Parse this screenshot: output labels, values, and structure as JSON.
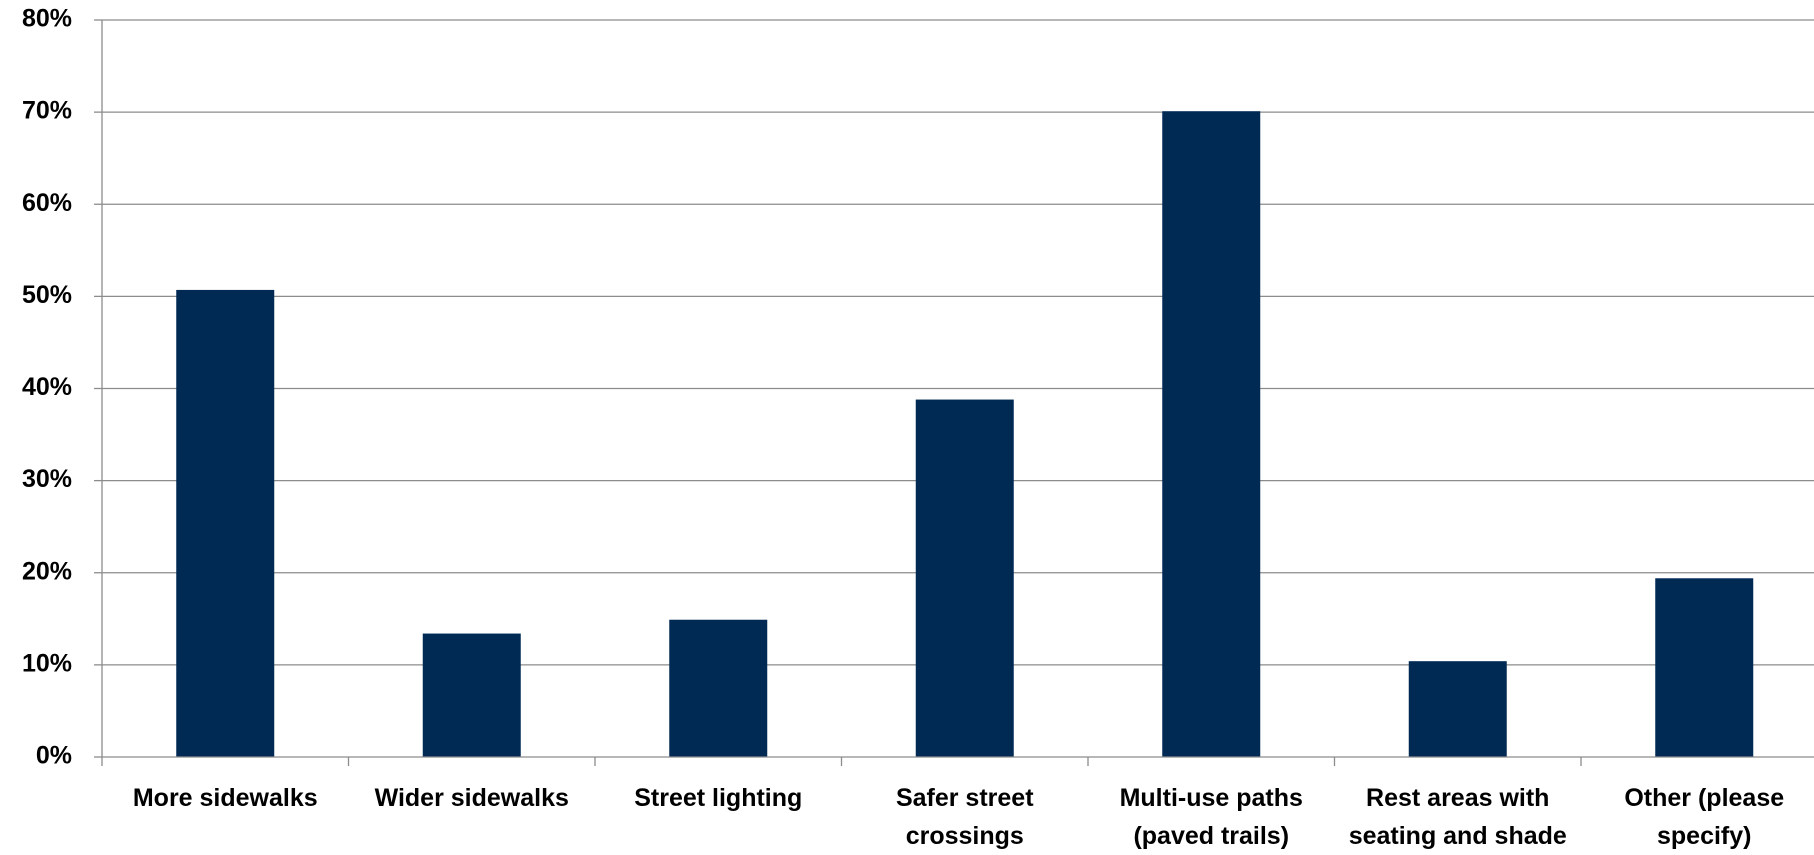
{
  "chart_data": {
    "type": "bar",
    "title": "",
    "xlabel": "",
    "ylabel": "",
    "categories": [
      [
        "More sidewalks"
      ],
      [
        "Wider sidewalks"
      ],
      [
        "Street lighting"
      ],
      [
        "Safer street",
        "crossings"
      ],
      [
        "Multi-use paths",
        "(paved trails)"
      ],
      [
        "Rest areas with",
        "seating and shade"
      ],
      [
        "Other (please",
        "specify)"
      ]
    ],
    "values": [
      50.7,
      13.4,
      14.9,
      38.8,
      70.1,
      10.4,
      19.4
    ],
    "ylim": [
      0,
      80
    ],
    "yticks": [
      "0%",
      "10%",
      "20%",
      "30%",
      "40%",
      "50%",
      "60%",
      "70%",
      "80%"
    ],
    "grid": true,
    "legend": "none",
    "bar_color": "#002A54",
    "grid_color": "#8C8C8C"
  }
}
